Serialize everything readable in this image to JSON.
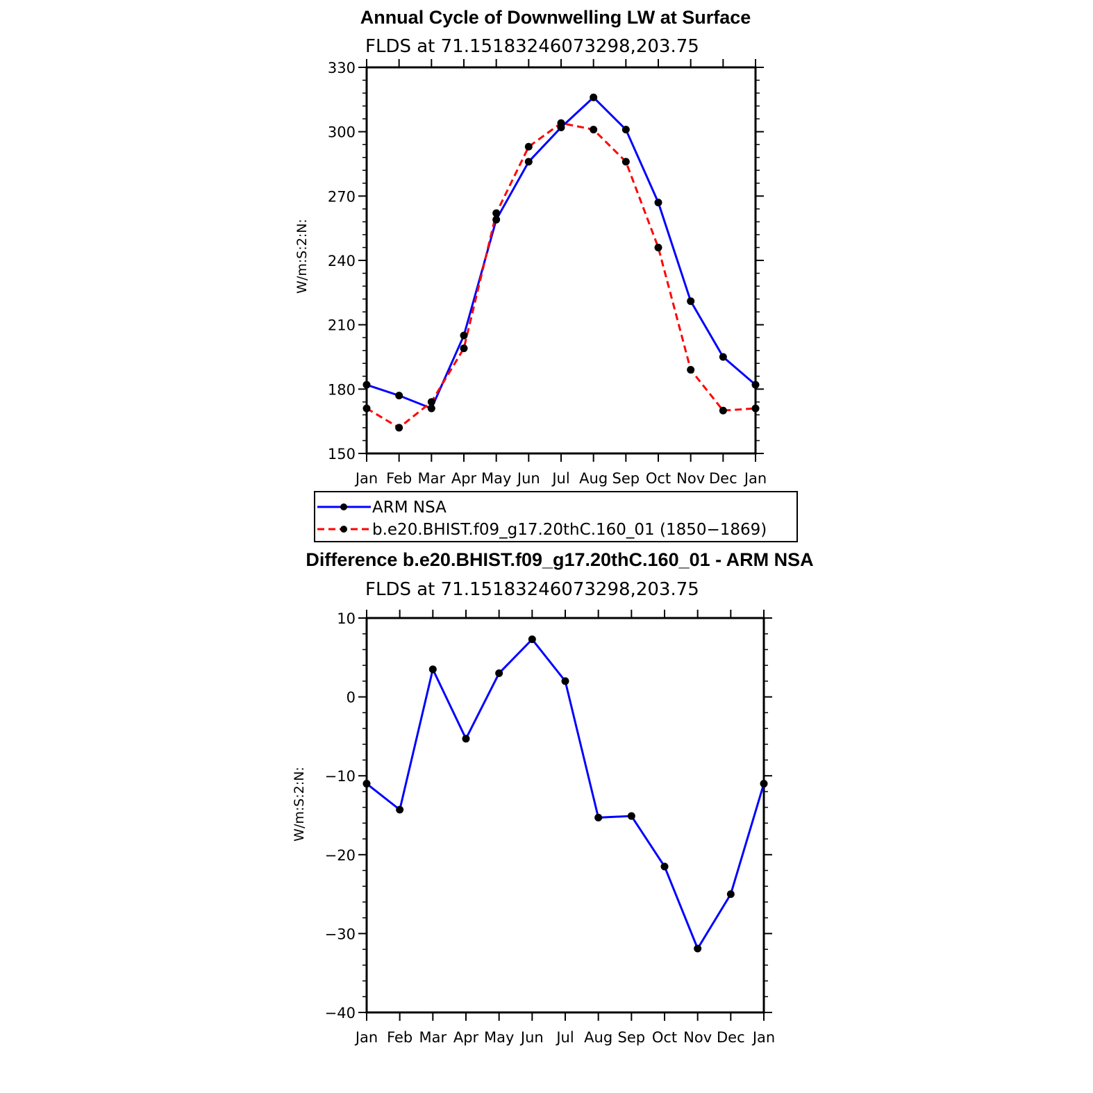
{
  "chart_data": [
    {
      "type": "line",
      "title": "Annual Cycle of Downwelling LW at Surface",
      "subtitle": "FLDS at 71.15183246073298,203.75",
      "ylabel": "W/m:S:2:N:",
      "xlabel": "",
      "categories": [
        "Jan",
        "Feb",
        "Mar",
        "Apr",
        "May",
        "Jun",
        "Jul",
        "Aug",
        "Sep",
        "Oct",
        "Nov",
        "Dec",
        "Jan"
      ],
      "ylim": [
        150,
        330
      ],
      "yticks": [
        "150",
        "180",
        "210",
        "240",
        "270",
        "300",
        "330"
      ],
      "series": [
        {
          "name": "ARM NSA",
          "color": "#0000ff",
          "dash": "solid",
          "values": [
            182,
            177,
            171,
            205,
            259,
            286,
            302,
            316,
            301,
            267,
            221,
            195,
            182
          ]
        },
        {
          "name": "b.e20.BHIST.f09_g17.20thC.160_01 (1850−1869)",
          "color": "#ff0000",
          "dash": "dashed",
          "values": [
            171,
            162,
            174,
            199,
            262,
            293,
            304,
            301,
            286,
            246,
            189,
            170,
            171
          ]
        }
      ]
    },
    {
      "type": "line",
      "title": "Difference b.e20.BHIST.f09_g17.20thC.160_01 - ARM NSA",
      "subtitle": "FLDS at 71.15183246073298,203.75",
      "ylabel": "W/m:S:2:N:",
      "xlabel": "",
      "categories": [
        "Jan",
        "Feb",
        "Mar",
        "Apr",
        "May",
        "Jun",
        "Jul",
        "Aug",
        "Sep",
        "Oct",
        "Nov",
        "Dec",
        "Jan"
      ],
      "ylim": [
        -40,
        10
      ],
      "yticks": [
        "−40",
        "−30",
        "−20",
        "−10",
        "0",
        "10"
      ],
      "series": [
        {
          "color": "#0000ff",
          "dash": "solid",
          "values": [
            -11,
            -14.3,
            3.5,
            -5.3,
            3,
            7.3,
            2,
            -15.3,
            -15.1,
            -21.5,
            -31.9,
            -25,
            -11
          ]
        }
      ]
    }
  ]
}
